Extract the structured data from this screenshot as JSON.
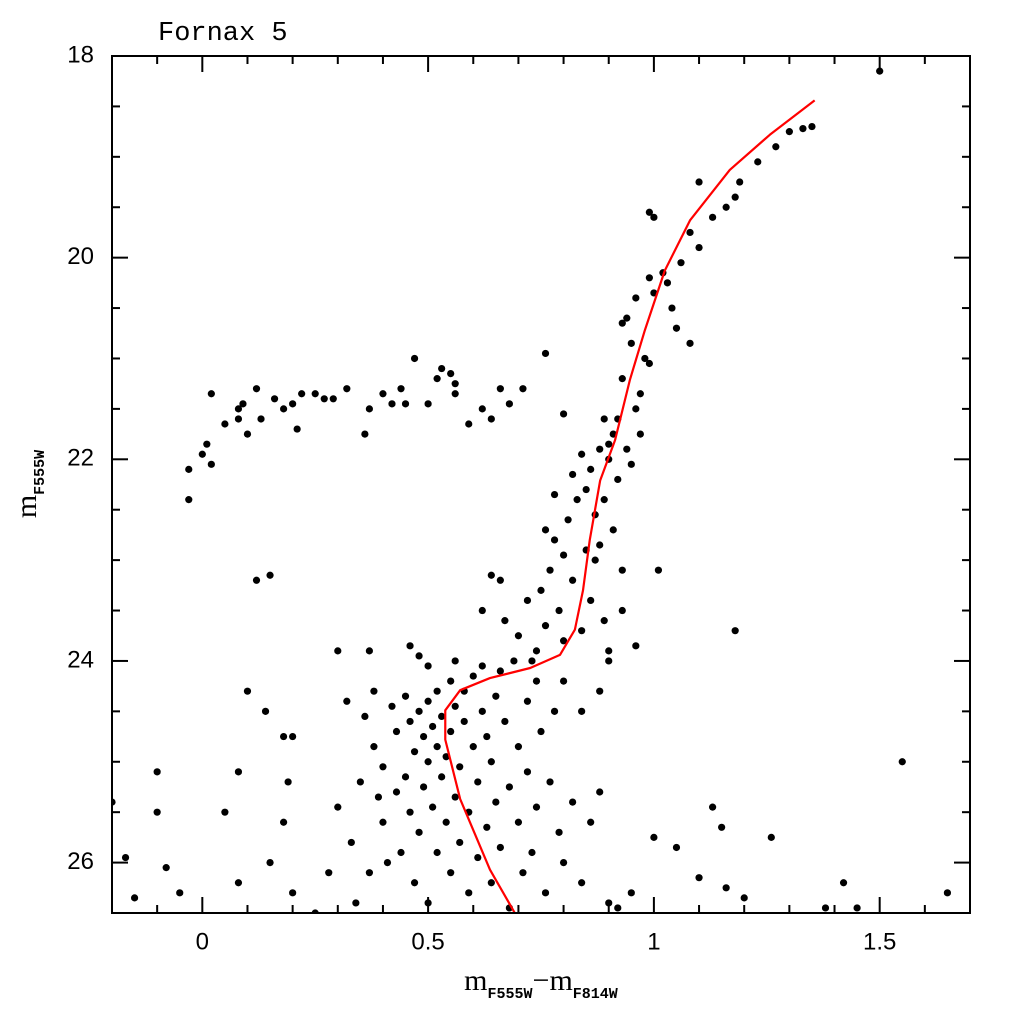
{
  "chart_data": {
    "type": "scatter",
    "title": "Fornax 5",
    "xlabel_parts": [
      "m",
      "F555W",
      "−m",
      "F814W"
    ],
    "ylabel_parts": [
      "m",
      "F555W"
    ],
    "xlim": [
      -0.2,
      1.7
    ],
    "ylim": [
      18,
      26.5
    ],
    "y_inverted": true,
    "xticks": [
      0,
      0.5,
      1,
      1.5
    ],
    "yticks": [
      18,
      20,
      22,
      24,
      26
    ],
    "xminor": [
      -0.1,
      0.1,
      0.2,
      0.3,
      0.4,
      0.6,
      0.7,
      0.8,
      0.9,
      1.1,
      1.2,
      1.3,
      1.4,
      1.6
    ],
    "yminor": [
      18.5,
      19,
      19.5,
      20.5,
      21,
      21.5,
      22.5,
      23,
      23.5,
      24.5,
      25,
      25.5
    ],
    "series": [
      {
        "type": "scatter",
        "color": "#000000",
        "x": [
          -0.03,
          -0.03,
          0,
          0.01,
          0.02,
          0.02,
          0.05,
          0.08,
          0.09,
          0.08,
          0.1,
          0.12,
          0.13,
          0.16,
          0.18,
          0.2,
          0.21,
          0.22,
          0.25,
          0.27,
          0.29,
          0.32,
          0.36,
          0.37,
          0.4,
          0.42,
          0.44,
          0.45,
          0.47,
          0.5,
          0.52,
          0.53,
          0.55,
          0.56,
          0.56,
          0.59,
          0.62,
          0.64,
          0.66,
          0.68,
          0.71,
          0.76,
          0.8,
          1.5,
          1.35,
          1.33,
          1.3,
          1.27,
          1.23,
          1.19,
          1.18,
          1.16,
          1.1,
          1.13,
          1.08,
          1.1,
          1.06,
          1.0,
          0.99,
          1.02,
          1.03,
          0.99,
          1.0,
          1.04,
          0.96,
          1.08,
          1.05,
          0.94,
          0.93,
          0.98,
          0.99,
          0.95,
          0.93,
          0.97,
          0.62,
          0.64,
          0.66,
          0.67,
          0.7,
          0.72,
          0.74,
          0.75,
          0.76,
          0.77,
          0.78,
          0.79,
          0.8,
          0.8,
          0.81,
          0.82,
          0.83,
          0.84,
          0.85,
          0.85,
          0.86,
          0.86,
          0.87,
          0.87,
          0.88,
          0.88,
          0.89,
          0.89,
          0.9,
          0.9,
          0.91,
          0.91,
          0.92,
          0.92,
          0.93,
          0.94,
          0.95,
          0.96,
          0.97,
          0.9,
          0.89,
          0.76,
          0.78,
          0.82,
          0.84,
          0.73,
          0.8,
          0.84,
          0.88,
          0.9,
          0.93,
          0.3,
          0.33,
          0.35,
          0.36,
          0.38,
          0.38,
          0.4,
          0.4,
          0.41,
          0.42,
          0.43,
          0.43,
          0.44,
          0.45,
          0.45,
          0.46,
          0.46,
          0.47,
          0.47,
          0.48,
          0.48,
          0.49,
          0.49,
          0.5,
          0.5,
          0.5,
          0.51,
          0.51,
          0.52,
          0.52,
          0.52,
          0.53,
          0.53,
          0.54,
          0.54,
          0.55,
          0.55,
          0.55,
          0.56,
          0.56,
          0.57,
          0.57,
          0.58,
          0.58,
          0.59,
          0.59,
          0.6,
          0.6,
          0.61,
          0.61,
          0.62,
          0.62,
          0.63,
          0.63,
          0.64,
          0.64,
          0.65,
          0.65,
          0.66,
          0.66,
          0.67,
          0.68,
          0.68,
          0.69,
          0.7,
          0.7,
          0.71,
          0.72,
          0.72,
          0.73,
          0.74,
          0.74,
          0.75,
          0.76,
          0.77,
          0.78,
          0.79,
          0.8,
          0.82,
          0.84,
          0.86,
          0.88,
          0.9,
          0.32,
          0.34,
          0.37,
          0.39,
          0.28,
          0.3,
          0.37,
          0.46,
          0.48,
          0.5,
          0.56,
          -0.2,
          -0.17,
          -0.15,
          -0.1,
          -0.1,
          -0.08,
          -0.05,
          0.08,
          0.08,
          0.05,
          0.1,
          0.12,
          0.15,
          0.14,
          0.18,
          0.2,
          0.19,
          0.18,
          0.15,
          0.2,
          0.25,
          1.01,
          1.18,
          0.96,
          1.55,
          1.42,
          1.65,
          1.26,
          1.13,
          1.15,
          1.0,
          1.05,
          1.1,
          1.16,
          1.2,
          0.95,
          1.38,
          1.45,
          0.92
        ],
        "y": [
          22.1,
          22.4,
          21.95,
          21.85,
          22.05,
          21.35,
          21.65,
          21.5,
          21.45,
          21.6,
          21.75,
          21.3,
          21.6,
          21.4,
          21.5,
          21.45,
          21.7,
          21.35,
          21.35,
          21.4,
          21.4,
          21.3,
          21.75,
          21.5,
          21.35,
          21.45,
          21.3,
          21.45,
          21.0,
          21.45,
          21.2,
          21.1,
          21.15,
          21.35,
          21.25,
          21.65,
          21.5,
          21.6,
          21.3,
          21.45,
          21.3,
          20.95,
          21.55,
          18.15,
          18.7,
          18.72,
          18.75,
          18.9,
          19.05,
          19.25,
          19.4,
          19.5,
          19.25,
          19.6,
          19.75,
          19.9,
          20.05,
          19.6,
          19.55,
          20.15,
          20.25,
          20.2,
          20.35,
          20.5,
          20.4,
          20.85,
          20.7,
          20.6,
          20.65,
          21.0,
          21.05,
          20.85,
          21.2,
          21.35,
          23.5,
          23.15,
          23.2,
          23.6,
          23.75,
          23.4,
          23.9,
          23.3,
          23.65,
          23.1,
          22.8,
          23.5,
          22.95,
          23.8,
          22.6,
          23.2,
          22.4,
          23.7,
          22.9,
          22.3,
          23.4,
          22.1,
          23.0,
          22.55,
          22.85,
          21.9,
          23.6,
          22.4,
          22.0,
          23.9,
          22.7,
          21.75,
          21.6,
          22.2,
          23.1,
          21.9,
          22.05,
          21.5,
          21.75,
          21.85,
          21.6,
          22.7,
          22.35,
          22.15,
          21.95,
          24.0,
          24.2,
          24.5,
          24.3,
          24.0,
          23.5,
          25.45,
          25.8,
          25.2,
          24.55,
          24.3,
          24.85,
          25.05,
          25.6,
          26.0,
          24.45,
          24.7,
          25.3,
          25.9,
          24.35,
          25.15,
          24.6,
          25.5,
          24.9,
          26.2,
          24.5,
          25.7,
          24.75,
          25.25,
          24.4,
          25.0,
          26.4,
          24.65,
          25.45,
          24.3,
          24.85,
          25.9,
          25.15,
          24.55,
          25.6,
          24.95,
          24.7,
          26.1,
          24.2,
          25.35,
          24.45,
          25.05,
          25.8,
          24.6,
          24.3,
          25.5,
          26.3,
          24.85,
          24.15,
          25.2,
          25.95,
          24.5,
          24.05,
          25.65,
          24.75,
          26.2,
          25.0,
          24.35,
          25.4,
          24.1,
          25.85,
          24.6,
          25.25,
          26.45,
          24.0,
          24.85,
          25.6,
          26.1,
          24.4,
          25.1,
          25.9,
          24.2,
          25.45,
          24.7,
          26.3,
          25.2,
          24.5,
          25.7,
          26.0,
          25.4,
          26.2,
          25.6,
          25.3,
          26.4,
          24.4,
          26.4,
          26.1,
          25.35,
          26.1,
          23.9,
          23.9,
          23.85,
          23.95,
          24.05,
          24.0,
          25.4,
          25.95,
          26.35,
          25.1,
          25.5,
          26.05,
          26.3,
          25.1,
          26.2,
          25.5,
          24.3,
          23.2,
          23.15,
          24.5,
          24.75,
          24.75,
          25.2,
          25.6,
          26.0,
          26.3,
          26.5,
          23.1,
          23.7,
          23.85,
          25.0,
          26.2,
          26.3,
          25.75,
          25.45,
          25.65,
          25.75,
          25.85,
          26.15,
          26.25,
          26.35,
          26.3,
          26.45,
          26.45,
          26.45
        ]
      },
      {
        "type": "line",
        "color": "#ff0000",
        "x": [
          0.692,
          0.637,
          0.571,
          0.538,
          0.538,
          0.571,
          0.637,
          0.726,
          0.792,
          0.825,
          0.843,
          0.858,
          0.881,
          0.914,
          0.947,
          0.98,
          1.024,
          1.08,
          1.168,
          1.257,
          1.356
        ],
        "y": [
          26.5,
          26.07,
          25.37,
          24.78,
          24.49,
          24.29,
          24.17,
          24.07,
          23.94,
          23.69,
          23.3,
          22.8,
          22.21,
          21.81,
          21.21,
          20.72,
          20.13,
          19.63,
          19.13,
          18.78,
          18.44
        ]
      }
    ]
  }
}
